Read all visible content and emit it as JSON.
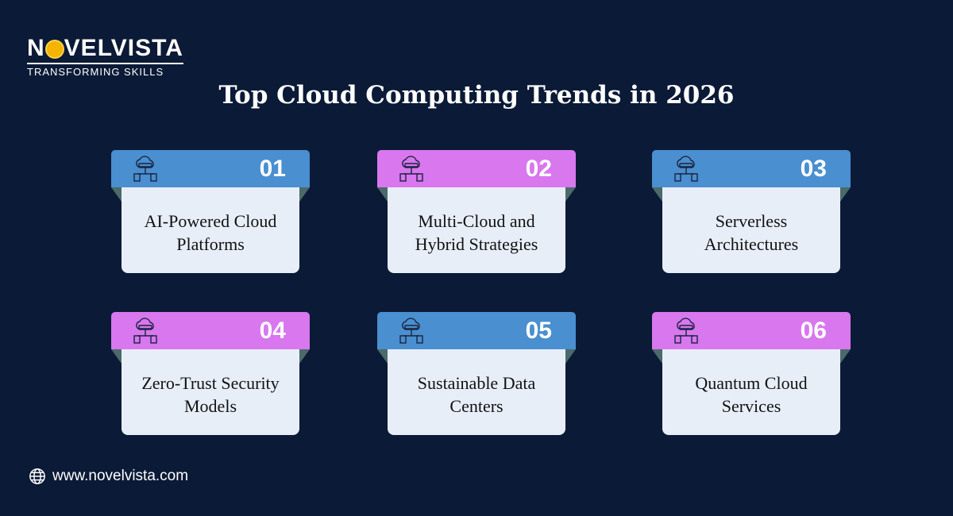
{
  "brand": {
    "name": "NOVELVISTA",
    "name_pre": "N",
    "name_post": "VELVISTA",
    "tagline": "TRANSFORMING SKILLS"
  },
  "title": "Top Cloud Computing Trends in 2026",
  "colors": {
    "background": "#0b1a36",
    "blue": "#4a8fd0",
    "purple": "#d877ee",
    "card": "#e8eef8"
  },
  "cards": [
    {
      "number": "01",
      "label": "AI-Powered Cloud Platforms",
      "icon": "cloud-server-icon",
      "color": "blue"
    },
    {
      "number": "02",
      "label": "Multi-Cloud and Hybrid Strategies",
      "icon": "cloud-network-icon",
      "color": "purple"
    },
    {
      "number": "03",
      "label": "Serverless Architectures",
      "icon": "network-computer-icon",
      "color": "blue"
    },
    {
      "number": "04",
      "label": "Zero-Trust Security Models",
      "icon": "shield-lock-icon",
      "color": "purple"
    },
    {
      "number": "05",
      "label": "Sustainable Data Centers",
      "icon": "cloud-database-icon",
      "color": "blue"
    },
    {
      "number": "06",
      "label": "Quantum Cloud Services",
      "icon": "cloud-gear-icon",
      "color": "purple"
    }
  ],
  "footer": {
    "website": "www.novelvista.com",
    "icon": "globe-icon"
  }
}
